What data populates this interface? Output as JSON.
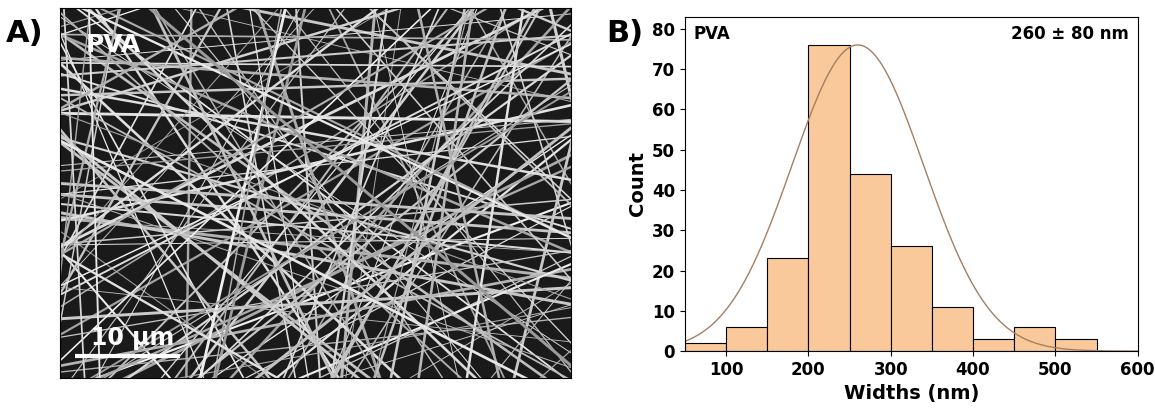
{
  "panel_labels": [
    "A)",
    "B)"
  ],
  "image": {
    "label": "PVA",
    "scale_bar": "10 μm"
  },
  "chart_data": {
    "type": "histogram",
    "title": "PVA",
    "annotation": "260 ± 80 nm",
    "x_label": "Widths (nm)",
    "y_label": "Count",
    "bins": [
      50,
      100,
      150,
      200,
      250,
      300,
      350,
      400,
      450,
      500,
      550
    ],
    "values": [
      2,
      6,
      23,
      76,
      44,
      26,
      11,
      3,
      6,
      3
    ],
    "color": "#f9c89b",
    "fit": {
      "mean": 260,
      "std": 80,
      "peak": 76,
      "color": "#a57f62"
    },
    "xlim": [
      50,
      600
    ],
    "xticks": [
      100,
      200,
      300,
      400,
      500,
      600
    ],
    "ylim": [
      0,
      83
    ],
    "yticks": [
      0,
      10,
      20,
      30,
      40,
      50,
      60,
      70,
      80
    ],
    "grid": false
  }
}
